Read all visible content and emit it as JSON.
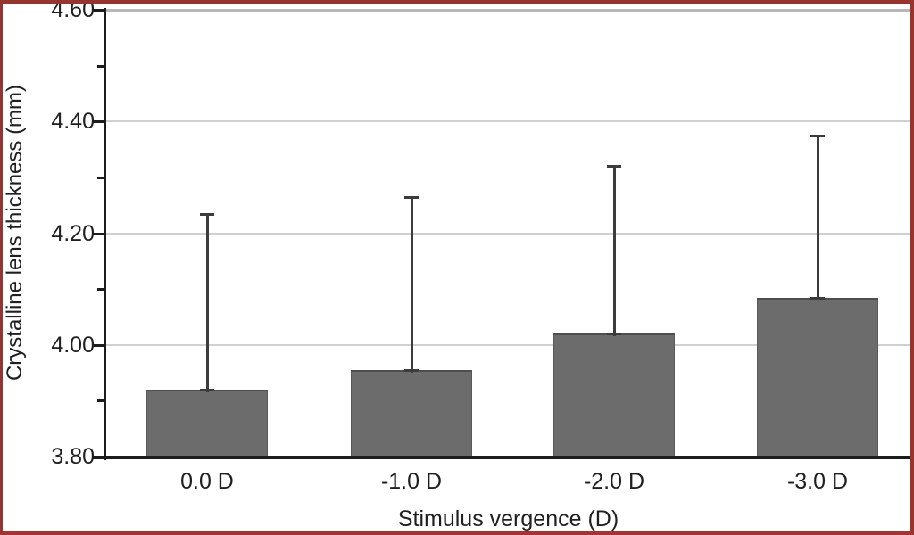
{
  "figure": {
    "border_color": "#963430",
    "background": "#ffffff"
  },
  "chart_data": {
    "type": "bar",
    "title": "",
    "categories": [
      "0.0 D",
      "-1.0 D",
      "-2.0 D",
      "-3.0 D"
    ],
    "values": [
      3.92,
      3.955,
      4.02,
      4.085
    ],
    "errors_upper": [
      0.315,
      0.31,
      0.3,
      0.29
    ],
    "xlabel": "Stimulus vergence (D)",
    "ylabel": "Crystalline lens thickness (mm)",
    "ylim": [
      3.8,
      4.6
    ],
    "ytick_major": 0.2,
    "ytick_minor": 0.1,
    "ytick_labels": [
      "3.80",
      "4.00",
      "4.20",
      "4.40",
      "4.60"
    ],
    "grid": "horizontal major gridlines only",
    "legend": null,
    "bar_color": "#6c6c6c",
    "error_color": "#3c3c3c",
    "grid_color": "#d0d0d0",
    "axis_color": "#1c1c1c",
    "text_color": "#1f1f1f"
  }
}
